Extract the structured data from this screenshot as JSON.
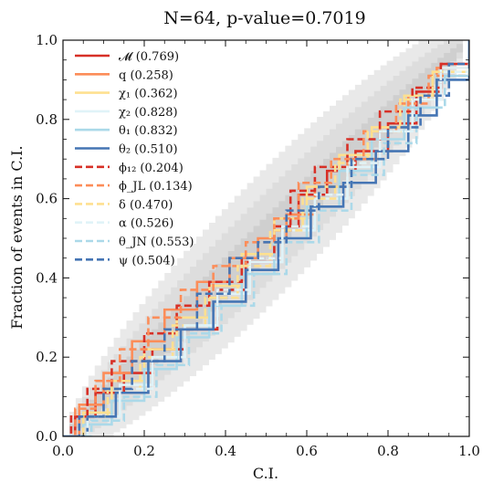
{
  "chart_data": {
    "type": "line",
    "title": "N=64, p-value=0.7019",
    "xlabel": "C.I.",
    "ylabel": "Fraction of events in C.I.",
    "xlim": [
      0,
      1
    ],
    "ylim": [
      0,
      1
    ],
    "x_ticks": [
      "0.0",
      "0.2",
      "0.4",
      "0.6",
      "0.8",
      "1.0"
    ],
    "y_ticks": [
      "0.0",
      "0.2",
      "0.4",
      "0.6",
      "0.8",
      "1.0"
    ],
    "grid": false,
    "legend_position": "top-left",
    "confidence_bands": [
      {
        "sigma": 3,
        "color": "#e9e9e9"
      },
      {
        "sigma": 2,
        "color": "#dddddd"
      },
      {
        "sigma": 1,
        "color": "#cfcfcf"
      }
    ],
    "series": [
      {
        "name": "𝓜 (0.769)",
        "color": "#d73027",
        "style": "solid",
        "points": [
          [
            0,
            0
          ],
          [
            0.03,
            0.05
          ],
          [
            0.08,
            0.11
          ],
          [
            0.15,
            0.16
          ],
          [
            0.22,
            0.22
          ],
          [
            0.3,
            0.27
          ],
          [
            0.38,
            0.37
          ],
          [
            0.45,
            0.44
          ],
          [
            0.52,
            0.53
          ],
          [
            0.58,
            0.61
          ],
          [
            0.65,
            0.67
          ],
          [
            0.72,
            0.72
          ],
          [
            0.8,
            0.79
          ],
          [
            0.87,
            0.87
          ],
          [
            0.93,
            0.94
          ],
          [
            1,
            1
          ]
        ]
      },
      {
        "name": "q (0.258)",
        "color": "#fc8d59",
        "style": "solid",
        "points": [
          [
            0,
            0
          ],
          [
            0.04,
            0.08
          ],
          [
            0.1,
            0.16
          ],
          [
            0.17,
            0.24
          ],
          [
            0.25,
            0.32
          ],
          [
            0.33,
            0.39
          ],
          [
            0.41,
            0.45
          ],
          [
            0.48,
            0.5
          ],
          [
            0.55,
            0.56
          ],
          [
            0.62,
            0.63
          ],
          [
            0.7,
            0.7
          ],
          [
            0.78,
            0.78
          ],
          [
            0.85,
            0.86
          ],
          [
            0.92,
            0.93
          ],
          [
            1,
            1
          ]
        ]
      },
      {
        "name": "χ₁ (0.362)",
        "color": "#fee090",
        "style": "solid",
        "points": [
          [
            0,
            0
          ],
          [
            0.05,
            0.06
          ],
          [
            0.12,
            0.14
          ],
          [
            0.2,
            0.22
          ],
          [
            0.28,
            0.3
          ],
          [
            0.36,
            0.38
          ],
          [
            0.44,
            0.46
          ],
          [
            0.52,
            0.55
          ],
          [
            0.6,
            0.63
          ],
          [
            0.68,
            0.71
          ],
          [
            0.76,
            0.78
          ],
          [
            0.84,
            0.86
          ],
          [
            0.91,
            0.92
          ],
          [
            1,
            1
          ]
        ]
      },
      {
        "name": "χ₂ (0.828)",
        "color": "#e0f3f8",
        "style": "solid",
        "points": [
          [
            0,
            0
          ],
          [
            0.06,
            0.05
          ],
          [
            0.14,
            0.13
          ],
          [
            0.22,
            0.2
          ],
          [
            0.3,
            0.28
          ],
          [
            0.38,
            0.36
          ],
          [
            0.46,
            0.44
          ],
          [
            0.54,
            0.52
          ],
          [
            0.62,
            0.6
          ],
          [
            0.7,
            0.68
          ],
          [
            0.78,
            0.77
          ],
          [
            0.86,
            0.85
          ],
          [
            0.93,
            0.93
          ],
          [
            1,
            1
          ]
        ]
      },
      {
        "name": "θ₁ (0.832)",
        "color": "#abd9e9",
        "style": "solid",
        "points": [
          [
            0,
            0
          ],
          [
            0.05,
            0.03
          ],
          [
            0.12,
            0.09
          ],
          [
            0.2,
            0.17
          ],
          [
            0.28,
            0.25
          ],
          [
            0.36,
            0.33
          ],
          [
            0.44,
            0.41
          ],
          [
            0.52,
            0.5
          ],
          [
            0.6,
            0.58
          ],
          [
            0.68,
            0.67
          ],
          [
            0.76,
            0.75
          ],
          [
            0.84,
            0.83
          ],
          [
            0.92,
            0.91
          ],
          [
            1,
            1
          ]
        ]
      },
      {
        "name": "θ₂ (0.510)",
        "color": "#4575b4",
        "style": "solid",
        "points": [
          [
            0,
            0
          ],
          [
            0.06,
            0.05
          ],
          [
            0.13,
            0.11
          ],
          [
            0.21,
            0.19
          ],
          [
            0.29,
            0.27
          ],
          [
            0.37,
            0.34
          ],
          [
            0.45,
            0.42
          ],
          [
            0.53,
            0.5
          ],
          [
            0.61,
            0.58
          ],
          [
            0.69,
            0.64
          ],
          [
            0.77,
            0.72
          ],
          [
            0.85,
            0.81
          ],
          [
            0.92,
            0.9
          ],
          [
            1,
            1
          ]
        ]
      },
      {
        "name": "ϕ₁₂ (0.204)",
        "color": "#d73027",
        "style": "dashed",
        "points": [
          [
            0,
            0
          ],
          [
            0.02,
            0.05
          ],
          [
            0.06,
            0.12
          ],
          [
            0.12,
            0.19
          ],
          [
            0.2,
            0.26
          ],
          [
            0.28,
            0.33
          ],
          [
            0.36,
            0.39
          ],
          [
            0.44,
            0.45
          ],
          [
            0.52,
            0.52
          ],
          [
            0.56,
            0.62
          ],
          [
            0.62,
            0.68
          ],
          [
            0.7,
            0.75
          ],
          [
            0.78,
            0.82
          ],
          [
            0.86,
            0.88
          ],
          [
            0.93,
            0.94
          ],
          [
            1,
            1
          ]
        ]
      },
      {
        "name": "ϕ_JL (0.134)",
        "color": "#fc8d59",
        "style": "dashed",
        "points": [
          [
            0,
            0
          ],
          [
            0.03,
            0.07
          ],
          [
            0.08,
            0.14
          ],
          [
            0.14,
            0.22
          ],
          [
            0.21,
            0.3
          ],
          [
            0.29,
            0.37
          ],
          [
            0.37,
            0.43
          ],
          [
            0.45,
            0.49
          ],
          [
            0.52,
            0.55
          ],
          [
            0.58,
            0.64
          ],
          [
            0.66,
            0.7
          ],
          [
            0.74,
            0.77
          ],
          [
            0.82,
            0.84
          ],
          [
            0.9,
            0.91
          ],
          [
            1,
            1
          ]
        ]
      },
      {
        "name": "δ (0.470)",
        "color": "#fee090",
        "style": "dashed",
        "points": [
          [
            0,
            0
          ],
          [
            0.05,
            0.05
          ],
          [
            0.11,
            0.12
          ],
          [
            0.19,
            0.2
          ],
          [
            0.27,
            0.28
          ],
          [
            0.35,
            0.35
          ],
          [
            0.43,
            0.43
          ],
          [
            0.51,
            0.52
          ],
          [
            0.59,
            0.6
          ],
          [
            0.67,
            0.69
          ],
          [
            0.75,
            0.77
          ],
          [
            0.83,
            0.85
          ],
          [
            0.91,
            0.92
          ],
          [
            1,
            1
          ]
        ]
      },
      {
        "name": "α (0.526)",
        "color": "#e0f3f8",
        "style": "dashed",
        "points": [
          [
            0,
            0
          ],
          [
            0.06,
            0.04
          ],
          [
            0.14,
            0.12
          ],
          [
            0.22,
            0.2
          ],
          [
            0.3,
            0.28
          ],
          [
            0.38,
            0.37
          ],
          [
            0.46,
            0.45
          ],
          [
            0.54,
            0.53
          ],
          [
            0.62,
            0.61
          ],
          [
            0.7,
            0.69
          ],
          [
            0.78,
            0.77
          ],
          [
            0.86,
            0.85
          ],
          [
            0.93,
            0.92
          ],
          [
            1,
            1
          ]
        ]
      },
      {
        "name": "θ_JN (0.553)",
        "color": "#abd9e9",
        "style": "dashed",
        "points": [
          [
            0,
            0
          ],
          [
            0.07,
            0.04
          ],
          [
            0.15,
            0.1
          ],
          [
            0.23,
            0.18
          ],
          [
            0.31,
            0.26
          ],
          [
            0.39,
            0.33
          ],
          [
            0.47,
            0.41
          ],
          [
            0.55,
            0.49
          ],
          [
            0.63,
            0.57
          ],
          [
            0.71,
            0.66
          ],
          [
            0.79,
            0.74
          ],
          [
            0.87,
            0.83
          ],
          [
            0.94,
            0.91
          ],
          [
            1,
            1
          ]
        ]
      },
      {
        "name": "ψ (0.504)",
        "color": "#4575b4",
        "style": "dashed",
        "points": [
          [
            0,
            0
          ],
          [
            0.04,
            0.05
          ],
          [
            0.1,
            0.12
          ],
          [
            0.17,
            0.19
          ],
          [
            0.25,
            0.27
          ],
          [
            0.33,
            0.36
          ],
          [
            0.41,
            0.45
          ],
          [
            0.48,
            0.49
          ],
          [
            0.55,
            0.57
          ],
          [
            0.63,
            0.63
          ],
          [
            0.71,
            0.7
          ],
          [
            0.8,
            0.78
          ],
          [
            0.88,
            0.86
          ],
          [
            0.95,
            0.94
          ],
          [
            1,
            1
          ]
        ]
      }
    ]
  }
}
